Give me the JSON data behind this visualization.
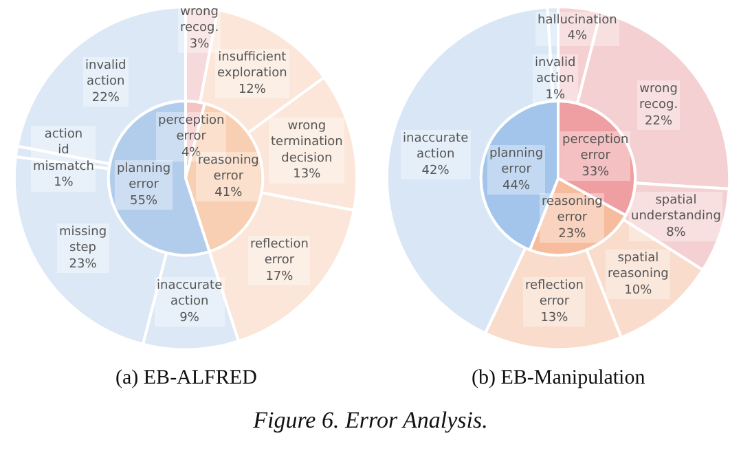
{
  "chart_data": [
    {
      "type": "pie",
      "categories": [
        "perception error",
        "reasoning error",
        "planning error"
      ],
      "values": [
        4,
        41,
        55
      ],
      "value_labels": [
        "4%",
        "41%",
        "55%"
      ],
      "colors": [
        "#f4c4c5",
        "#f8cfb3",
        "#b2cdec"
      ]
    },
    {
      "type": "donut",
      "title": "(a) EB-ALFRED",
      "categories": [
        "wrong recog.",
        "insufficient exploration",
        "wrong termination decision",
        "reflection error",
        "inaccurate action",
        "missing step",
        "action id mismatch",
        "invalid action"
      ],
      "values": [
        3,
        12,
        13,
        17,
        9,
        23,
        1,
        22
      ],
      "value_labels": [
        "3%",
        "12%",
        "13%",
        "17%",
        "9%",
        "23%",
        "1%",
        "22%"
      ],
      "colors": [
        "#f6d9da",
        "#fbe6d9",
        "#fbe6d9",
        "#fbe6d9",
        "#dce8f6",
        "#dce8f6",
        "#dce8f6",
        "#dce8f6"
      ]
    },
    {
      "type": "pie",
      "categories": [
        "perception error",
        "reasoning error",
        "planning error"
      ],
      "values": [
        33,
        23,
        44
      ],
      "value_labels": [
        "33%",
        "23%",
        "44%"
      ],
      "colors": [
        "#ef9fa2",
        "#f6bc9d",
        "#a3c5ec"
      ]
    },
    {
      "type": "donut",
      "title": "(b) EB-Manipulation",
      "categories": [
        "hallucination",
        "wrong recog.",
        "spatial understanding",
        "spatial reasoning",
        "reflection error",
        "inaccurate action",
        "invalid action"
      ],
      "values": [
        4,
        22,
        8,
        10,
        13,
        42,
        1
      ],
      "value_labels": [
        "4%",
        "22%",
        "8%",
        "10%",
        "13%",
        "42%",
        "1%"
      ],
      "colors": [
        "#f5d0d2",
        "#f5d0d2",
        "#f5d0d2",
        "#f9dccb",
        "#f9dccb",
        "#d8e6f6",
        "#d8e6f6"
      ],
      "annotations": [
        "Figure 6. Error Analysis."
      ]
    }
  ]
}
